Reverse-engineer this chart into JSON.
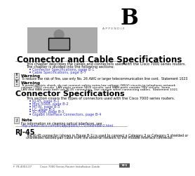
{
  "page_bg": "#ffffff",
  "title": "Connector and Cable Specifications",
  "appendix_label": "A P P E N D I X",
  "appendix_letter": "B",
  "section_title": "Connector Specifications",
  "subsection_title": "RJ-45",
  "intro_text1": "This chapter describes the cables and connectors used with the Cisco 7000 series routers.",
  "intro_text2": "The chapter is divided into the following sections:",
  "bullet_links": [
    "Connector Specifications, page B-1",
    "Cable Specifications, page B-7"
  ],
  "warning1_label": "Warning",
  "warning1_text": "To reduce the risk of fire, use only No. 26 AWG or larger telecommunication line cord.  Statement 1023",
  "warning2_label": "Warning",
  "warning2_lines": [
    "To avoid electric shock, do not connect safety extra-low voltage (SELV) circuits to telephone network",
    "voltage (TNV) circuits. LAN ports contain SELV circuits, and WAN ports contain TNV circuits. Some",
    "LAN and WAN ports both use RJ-45 connectors. Use caution when connecting cables.  Statement 1021"
  ],
  "connector_intro": "This section covers the types of connectors used with the Cisco 7000 series routers.",
  "connector_bullets": [
    "RJ-45, page B-1",
    "Mini-50RB, page B-2",
    "MT-RJ, page B-3",
    "LC, page B-3",
    "SC-Type, page B-3",
    "Gigabit Interface Connectors, page B-4"
  ],
  "note_label": "Note",
  "note_line1": "For information on cleaning optical interfaces, see",
  "note_line2": "http://www.cisco.com/en/app/public/CCV/cleanfiber2.html",
  "rj45_lines": [
    "The RJ-45 connector (shown in Figure B-1) is used to connect a Category 3 or Category 5 shielded or",
    "unshielded twisted-pair cable from the external network to the module interface connector."
  ],
  "footer_text": "Cisco 7000 Series Router Installation Guide",
  "footer_page": "B-1",
  "footer_doc": "F 78-4003-07",
  "link_color": "#3333cc",
  "text_color": "#000000",
  "gray_text": "#555555",
  "rule_color": "#999999",
  "icon_face": "#dddddd",
  "icon_edge": "#777777"
}
